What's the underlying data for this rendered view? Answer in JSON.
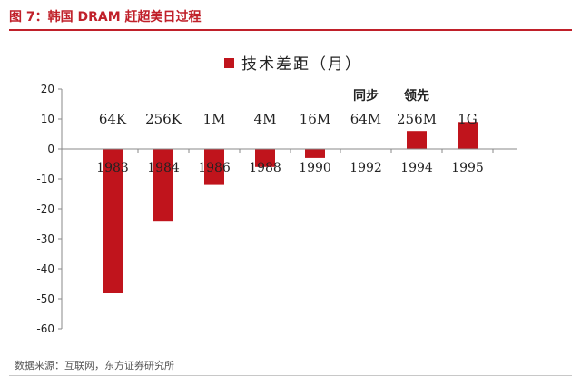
{
  "header": {
    "title": "图 7：韩国 DRAM 赶超美日过程"
  },
  "footer": {
    "source": "数据来源：互联网，东方证券研究所"
  },
  "colors": {
    "bar": "#c0141c",
    "accent": "#c0202a"
  },
  "chart_data": {
    "type": "bar",
    "legend": "技术差距（月）",
    "legend_position": "top-center",
    "categories": [
      "1983",
      "1984",
      "1986",
      "1988",
      "1990",
      "1992",
      "1994",
      "1995"
    ],
    "series": [
      {
        "name": "技术差距（月）",
        "values": [
          -48,
          -24,
          -12,
          -6,
          -3,
          0,
          6,
          9
        ]
      }
    ],
    "ylim": [
      -60,
      20
    ],
    "yticks": [
      20,
      10,
      0,
      -10,
      -20,
      -30,
      -40,
      -50,
      -60
    ],
    "grid": false,
    "annotations": [
      "64K",
      "256K",
      "1M",
      "4M",
      "16M",
      "64M",
      "256M",
      "1G"
    ],
    "text_labels": [
      {
        "text": "同步",
        "category": "1992"
      },
      {
        "text": "领先",
        "category": "1994"
      }
    ]
  }
}
